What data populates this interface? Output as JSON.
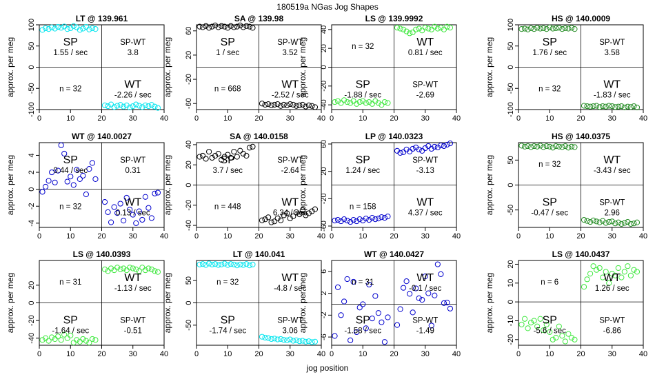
{
  "title": "180519a   NGas Jog Shapes",
  "xlabel": "jog position",
  "ylabel": "approx. per meg",
  "chart_data": [
    {
      "type": "scatter",
      "title": "LT @ 139.961",
      "color": "#00e5ee",
      "xlim": [
        0,
        40
      ],
      "ylim": [
        -100,
        100
      ],
      "yticks": [
        -100,
        -50,
        0,
        50,
        100
      ],
      "xticks": [
        0,
        10,
        20,
        30,
        40
      ],
      "sp_label": "SP",
      "sp_rate": "1.55 / sec",
      "wt_label": "WT",
      "wt_rate": "-2.26 / sec",
      "spwt_label": "SP-WT",
      "spwt_value": "3.8",
      "n_text": "n = 32",
      "x": [
        1,
        2,
        3,
        4,
        5,
        6,
        7,
        8,
        9,
        10,
        11,
        12,
        13,
        14,
        15,
        16,
        17,
        18,
        21,
        22,
        23,
        24,
        25,
        26,
        27,
        28,
        29,
        30,
        31,
        32,
        33,
        34,
        35,
        36,
        37,
        38
      ],
      "y": [
        88,
        92,
        90,
        94,
        91,
        95,
        93,
        96,
        90,
        92,
        97,
        94,
        88,
        91,
        95,
        89,
        92,
        90,
        -90,
        -92,
        -88,
        -94,
        -91,
        -89,
        -93,
        -90,
        -95,
        -92,
        -88,
        -91,
        -94,
        -90,
        -92,
        -89,
        -93,
        -96
      ]
    },
    {
      "type": "scatter",
      "title": "SA @ 139.98",
      "color": "#000000",
      "xlim": [
        0,
        40
      ],
      "ylim": [
        -70,
        70
      ],
      "yticks": [
        -60,
        -20,
        20,
        60
      ],
      "xticks": [
        0,
        10,
        20,
        30,
        40
      ],
      "sp_label": "SP",
      "sp_rate": "1 / sec",
      "wt_label": "WT",
      "wt_rate": "-2.52 / sec",
      "spwt_label": "SP-WT",
      "spwt_value": "3.52",
      "n_text": "n = 668",
      "x": [
        1,
        2,
        3,
        4,
        5,
        6,
        7,
        8,
        9,
        10,
        11,
        12,
        13,
        14,
        15,
        16,
        17,
        18,
        21,
        22,
        23,
        24,
        25,
        26,
        27,
        28,
        29,
        30,
        31,
        32,
        33,
        34,
        35,
        36,
        37,
        38
      ],
      "y": [
        67,
        66,
        68,
        65,
        67,
        69,
        66,
        68,
        67,
        65,
        68,
        66,
        67,
        69,
        66,
        68,
        67,
        65,
        -60,
        -62,
        -61,
        -63,
        -62,
        -61,
        -64,
        -62,
        -63,
        -61,
        -62,
        -64,
        -63,
        -62,
        -65,
        -63,
        -64,
        -66
      ]
    },
    {
      "type": "scatter",
      "title": "LS @ 139.9992",
      "color": "#3ee83e",
      "xlim": [
        0,
        40
      ],
      "ylim": [
        -45,
        45
      ],
      "yticks": [
        -40,
        -20,
        0,
        20,
        40
      ],
      "xticks": [
        0,
        10,
        20,
        30,
        40
      ],
      "sp_label": "SP",
      "sp_rate": "-1.88 / sec",
      "wt_label": "WT",
      "wt_rate": "0.81 / sec",
      "spwt_label": "SP-WT",
      "spwt_value": "-2.69",
      "n_text": "n = 32",
      "x": [
        1,
        2,
        3,
        4,
        5,
        6,
        7,
        8,
        9,
        10,
        11,
        12,
        13,
        14,
        15,
        16,
        17,
        18,
        21,
        22,
        23,
        24,
        25,
        26,
        27,
        28,
        29,
        30,
        31,
        32,
        33,
        34,
        35,
        36,
        37,
        38
      ],
      "y": [
        -37,
        -36,
        -38,
        -35,
        -37,
        -38,
        -36,
        -39,
        -37,
        -36,
        -38,
        -37,
        -39,
        -36,
        -38,
        -40,
        -37,
        -38,
        42,
        41,
        40,
        38,
        36,
        37,
        40,
        41,
        39,
        42,
        41,
        40,
        43,
        41,
        42,
        40,
        43,
        42
      ]
    },
    {
      "type": "scatter",
      "title": "HS @ 140.0009",
      "color": "#228b22",
      "xlim": [
        0,
        40
      ],
      "ylim": [
        -100,
        100
      ],
      "yticks": [
        -100,
        -50,
        0,
        50,
        100
      ],
      "xticks": [
        0,
        10,
        20,
        30,
        40
      ],
      "sp_label": "SP",
      "sp_rate": "1.76 / sec",
      "wt_label": "WT",
      "wt_rate": "-1.83 / sec",
      "spwt_label": "SP-WT",
      "spwt_value": "3.58",
      "n_text": "n = 32",
      "x": [
        1,
        2,
        3,
        4,
        5,
        6,
        7,
        8,
        9,
        10,
        11,
        12,
        13,
        14,
        15,
        16,
        17,
        18,
        21,
        22,
        23,
        24,
        25,
        26,
        27,
        28,
        29,
        30,
        31,
        32,
        33,
        34,
        35,
        36,
        37,
        38
      ],
      "y": [
        90,
        91,
        89,
        92,
        90,
        93,
        91,
        92,
        90,
        94,
        91,
        92,
        93,
        90,
        92,
        91,
        93,
        90,
        -91,
        -92,
        -93,
        -92,
        -91,
        -94,
        -92,
        -93,
        -91,
        -92,
        -94,
        -93,
        -92,
        -95,
        -93,
        -94,
        -92,
        -95
      ]
    },
    {
      "type": "scatter",
      "title": "WT @ 140.0027",
      "color": "#0000cd",
      "xlim": [
        0,
        40
      ],
      "ylim": [
        -4.5,
        5.5
      ],
      "yticks": [
        -4,
        -2,
        0,
        2,
        4
      ],
      "xticks": [
        0,
        10,
        20,
        30,
        40
      ],
      "sp_label": "SP",
      "sp_rate": "0.44 / sec",
      "wt_label": "WT",
      "wt_rate": "0.13 / sec",
      "spwt_label": "SP-WT",
      "spwt_value": "0.31",
      "n_text": "n = 32",
      "x": [
        1,
        2,
        3,
        4,
        5,
        6,
        7,
        8,
        9,
        10,
        11,
        12,
        13,
        14,
        15,
        16,
        17,
        18,
        21,
        22,
        23,
        24,
        25,
        26,
        27,
        28,
        29,
        30,
        31,
        32,
        33,
        34,
        35,
        36,
        37,
        38
      ],
      "y": [
        -0.3,
        0.3,
        1.0,
        2.0,
        0.8,
        2.2,
        5.2,
        4.2,
        0.9,
        1.5,
        0.5,
        2.3,
        1.2,
        1.6,
        -0.6,
        2.4,
        3.1,
        1.2,
        -1.5,
        -2.7,
        -3.9,
        -2.1,
        -2.8,
        -1.7,
        -3.7,
        -1.0,
        -2.4,
        -3.0,
        -4.0,
        -2.6,
        -3.6,
        -0.9,
        -2.2,
        -3.4,
        -0.5,
        -0.4
      ]
    },
    {
      "type": "scatter",
      "title": "SA @ 140.0158",
      "color": "#000000",
      "xlim": [
        0,
        40
      ],
      "ylim": [
        -42,
        42
      ],
      "yticks": [
        -40,
        -20,
        0,
        20,
        40
      ],
      "xticks": [
        0,
        10,
        20,
        30,
        40
      ],
      "sp_label": "SP",
      "sp_rate": "3.7 / sec",
      "wt_label": "WT",
      "wt_rate": "6.34 / sec",
      "spwt_label": "SP-WT",
      "spwt_value": "-2.64",
      "n_text": "n = 448",
      "x": [
        1,
        2,
        3,
        4,
        5,
        6,
        7,
        8,
        9,
        10,
        11,
        12,
        13,
        14,
        15,
        16,
        17,
        18,
        21,
        22,
        23,
        24,
        25,
        26,
        27,
        28,
        29,
        30,
        31,
        32,
        33,
        34,
        35,
        36,
        37,
        38
      ],
      "y": [
        28,
        29,
        26,
        33,
        27,
        29,
        31,
        25,
        28,
        30,
        27,
        33,
        28,
        34,
        31,
        29,
        37,
        38,
        -35,
        -34,
        -32,
        -37,
        -36,
        -33,
        -35,
        -30,
        -28,
        -33,
        -31,
        -27,
        -29,
        -25,
        -30,
        -28,
        -26,
        -24
      ]
    },
    {
      "type": "scatter",
      "title": "LP @ 140.0323",
      "color": "#0000cd",
      "xlim": [
        0,
        40
      ],
      "ylim": [
        -62,
        62
      ],
      "yticks": [
        -60,
        -20,
        20,
        60
      ],
      "xticks": [
        0,
        10,
        20,
        30,
        40
      ],
      "sp_label": "SP",
      "sp_rate": "1.24 / sec",
      "wt_label": "WT",
      "wt_rate": "4.37 / sec",
      "spwt_label": "SP-WT",
      "spwt_value": "-3.13",
      "n_text": "n = 158",
      "x": [
        1,
        2,
        3,
        4,
        5,
        6,
        7,
        8,
        9,
        10,
        11,
        12,
        13,
        14,
        15,
        16,
        17,
        18,
        21,
        22,
        23,
        24,
        25,
        26,
        27,
        28,
        29,
        30,
        31,
        32,
        33,
        34,
        35,
        36,
        37,
        38
      ],
      "y": [
        -52,
        -51,
        -53,
        -50,
        -52,
        -54,
        -51,
        -53,
        -50,
        -52,
        -49,
        -51,
        -48,
        -50,
        -49,
        -47,
        -48,
        -46,
        50,
        47,
        48,
        52,
        49,
        53,
        55,
        52,
        50,
        54,
        57,
        53,
        56,
        55,
        58,
        57,
        59,
        61
      ]
    },
    {
      "type": "scatter",
      "title": "HS @ 140.0375",
      "color": "#228b22",
      "xlim": [
        0,
        40
      ],
      "ylim": [
        -85,
        85
      ],
      "yticks": [
        -50,
        0,
        50
      ],
      "xticks": [
        0,
        10,
        20,
        30,
        40
      ],
      "sp_label": "SP",
      "sp_rate": "-0.47 / sec",
      "wt_label": "WT",
      "wt_rate": "-3.43 / sec",
      "spwt_label": "SP-WT",
      "spwt_value": "2.96",
      "n_text": "n = 32",
      "x": [
        1,
        2,
        3,
        4,
        5,
        6,
        7,
        8,
        9,
        10,
        11,
        12,
        13,
        14,
        15,
        16,
        17,
        18,
        21,
        22,
        23,
        24,
        25,
        26,
        27,
        28,
        29,
        30,
        31,
        32,
        33,
        34,
        35,
        36,
        37,
        38
      ],
      "y": [
        79,
        77,
        78,
        76,
        78,
        77,
        79,
        76,
        78,
        77,
        75,
        78,
        77,
        76,
        78,
        75,
        77,
        76,
        -70,
        -72,
        -74,
        -71,
        -73,
        -75,
        -72,
        -76,
        -74,
        -73,
        -77,
        -75,
        -78,
        -76,
        -74,
        -78,
        -77,
        -75
      ]
    },
    {
      "type": "scatter",
      "title": "LS @ 140.0393",
      "color": "#3ee83e",
      "xlim": [
        0,
        40
      ],
      "ylim": [
        -48,
        48
      ],
      "yticks": [
        -40,
        -20,
        0,
        20
      ],
      "xticks": [
        0,
        10,
        20,
        30,
        40
      ],
      "sp_label": "SP",
      "sp_rate": "-1.64 / sec",
      "wt_label": "WT",
      "wt_rate": "-1.13 / sec",
      "spwt_label": "SP-WT",
      "spwt_value": "-0.51",
      "n_text": "n = 31",
      "x": [
        1,
        2,
        3,
        4,
        5,
        6,
        7,
        8,
        9,
        10,
        11,
        12,
        13,
        14,
        15,
        16,
        17,
        18,
        21,
        22,
        23,
        24,
        25,
        26,
        27,
        28,
        29,
        30,
        31,
        32,
        33,
        34,
        35,
        36,
        37,
        38
      ],
      "y": [
        -42,
        -40,
        -43,
        -39,
        -41,
        -38,
        -42,
        -36,
        -40,
        -37,
        -45,
        -42,
        -44,
        -41,
        -43,
        -45,
        -41,
        -42,
        38,
        36,
        39,
        37,
        40,
        38,
        39,
        37,
        40,
        39,
        38,
        36,
        40,
        37,
        39,
        38,
        36,
        35
      ]
    },
    {
      "type": "scatter",
      "title": "LT @ 140.041",
      "color": "#00e5ee",
      "xlim": [
        0,
        40
      ],
      "ylim": [
        -95,
        95
      ],
      "yticks": [
        -50,
        0,
        50
      ],
      "xticks": [
        0,
        10,
        20,
        30,
        40
      ],
      "sp_label": "SP",
      "sp_rate": "-1.74 / sec",
      "wt_label": "WT",
      "wt_rate": "-4.8 / sec",
      "spwt_label": "SP-WT",
      "spwt_value": "3.06",
      "n_text": "n = 32",
      "x": [
        1,
        2,
        3,
        4,
        5,
        6,
        7,
        8,
        9,
        10,
        11,
        12,
        13,
        14,
        15,
        16,
        17,
        18,
        21,
        22,
        23,
        24,
        25,
        26,
        27,
        28,
        29,
        30,
        31,
        32,
        33,
        34,
        35,
        36,
        37,
        38
      ],
      "y": [
        86,
        87,
        85,
        88,
        86,
        87,
        85,
        86,
        88,
        85,
        87,
        86,
        84,
        86,
        85,
        87,
        84,
        86,
        -76,
        -78,
        -79,
        -81,
        -80,
        -82,
        -81,
        -83,
        -84,
        -82,
        -85,
        -84,
        -86,
        -85,
        -87,
        -86,
        -88,
        -87
      ]
    },
    {
      "type": "scatter",
      "title": "WT @ 140.0427",
      "color": "#0000cd",
      "xlim": [
        0,
        40
      ],
      "ylim": [
        -7.5,
        8
      ],
      "yticks": [
        -6,
        -2,
        2,
        6
      ],
      "xticks": [
        0,
        10,
        20,
        30,
        40
      ],
      "sp_label": "SP",
      "sp_rate": "-1.58 / sec",
      "wt_label": "WT",
      "wt_rate": "-0.1 / sec",
      "spwt_label": "SP-WT",
      "spwt_value": "-1.49",
      "n_text": "n = 31",
      "x": [
        1,
        2,
        3,
        4,
        5,
        6,
        7,
        8,
        9,
        10,
        11,
        12,
        13,
        14,
        15,
        16,
        17,
        18,
        21,
        22,
        23,
        24,
        25,
        26,
        27,
        28,
        29,
        30,
        31,
        32,
        33,
        34,
        35,
        36,
        37,
        38
      ],
      "y": [
        -5.8,
        3.1,
        -2.0,
        0.5,
        4.6,
        -6.6,
        4.1,
        -5.1,
        -0.6,
        0.0,
        -4.4,
        3.6,
        -2.6,
        1.5,
        -1.6,
        -3.3,
        -6.9,
        -2.4,
        -3.8,
        -0.9,
        3.0,
        4.2,
        1.9,
        -1.5,
        2.9,
        1.1,
        0.8,
        5.1,
        2.0,
        -3.9,
        1.6,
        7.3,
        5.5,
        0.2,
        0.3,
        -0.8
      ]
    },
    {
      "type": "scatter",
      "title": "LS @ 140.0437",
      "color": "#3ee83e",
      "xlim": [
        0,
        40
      ],
      "ylim": [
        -23,
        22
      ],
      "yticks": [
        -20,
        -10,
        0,
        10,
        20
      ],
      "xticks": [
        0,
        10,
        20,
        30,
        40
      ],
      "sp_label": "SP",
      "sp_rate": "-5.6 / sec",
      "wt_label": "WT",
      "wt_rate": "1.26 / sec",
      "spwt_label": "SP-WT",
      "spwt_value": "-6.86",
      "n_text": "n = 6",
      "x": [
        1,
        2,
        3,
        4,
        5,
        6,
        7,
        8,
        9,
        10,
        11,
        12,
        13,
        14,
        15,
        16,
        17,
        18,
        21,
        22,
        23,
        24,
        25,
        26,
        27,
        28,
        29,
        30,
        31,
        32,
        33,
        34,
        35,
        36,
        37,
        38
      ],
      "y": [
        -12,
        -9,
        -14,
        -11,
        -10,
        -13,
        -9,
        -15,
        -12,
        -16,
        -20,
        -19,
        -13,
        -18,
        -21,
        -17,
        -19,
        -20,
        8,
        12,
        15,
        19,
        17,
        18,
        13,
        16,
        10,
        15,
        14,
        18,
        13,
        16,
        19,
        14,
        17,
        16
      ]
    }
  ]
}
